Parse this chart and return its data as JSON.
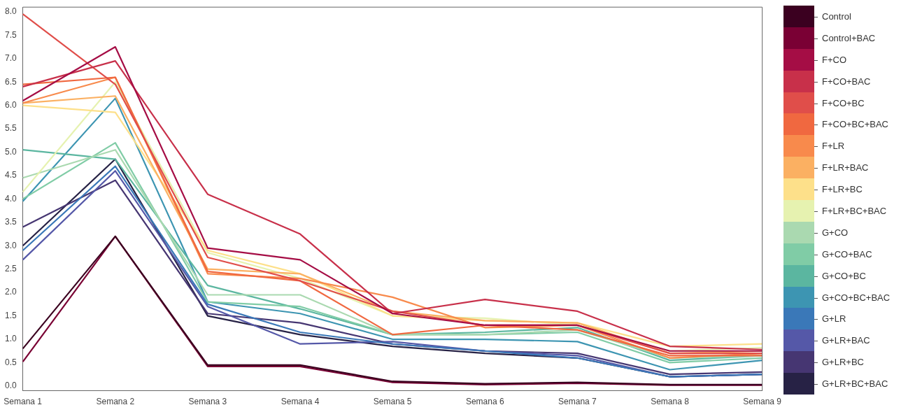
{
  "chart_data": {
    "type": "line",
    "categories": [
      "Semana 1",
      "Semana 2",
      "Semana 3",
      "Semana 4",
      "Semana 5",
      "Semana 6",
      "Semana 7",
      "Semana 8",
      "Semana 9"
    ],
    "ylim": [
      -0.1,
      8.1
    ],
    "yticks": [
      {
        "value": 0,
        "label": "0.0"
      },
      {
        "value": 0.5,
        "label": "0.5"
      },
      {
        "value": 1,
        "label": "1.0"
      },
      {
        "value": 1.5,
        "label": "1.5"
      },
      {
        "value": 2,
        "label": "2.0"
      },
      {
        "value": 2.5,
        "label": "2.5"
      },
      {
        "value": 3,
        "label": "3.0"
      },
      {
        "value": 3.5,
        "label": "3.5"
      },
      {
        "value": 4,
        "label": "4.0"
      },
      {
        "value": 4.5,
        "label": "4.5"
      },
      {
        "value": 5,
        "label": "5.0"
      },
      {
        "value": 5.5,
        "label": "5.5"
      },
      {
        "value": 6,
        "label": "6.0"
      },
      {
        "value": 6.5,
        "label": "6.5"
      },
      {
        "value": 7,
        "label": "7.0"
      },
      {
        "value": 7.5,
        "label": "7.5"
      },
      {
        "value": 8,
        "label": "8.0"
      }
    ],
    "grid": false,
    "legend": "right",
    "marker": "none",
    "line_style": "solid",
    "series": [
      {
        "name": "Control",
        "color": "#3b0020",
        "values": [
          0.8,
          3.2,
          0.45,
          0.45,
          0.1,
          0.05,
          0.08,
          0.03,
          0.03
        ]
      },
      {
        "name": "Control+BAC",
        "color": "#7a0034",
        "values": [
          0.52,
          3.2,
          0.42,
          0.42,
          0.08,
          0.03,
          0.06,
          0.02,
          0.02
        ]
      },
      {
        "name": "F+CO",
        "color": "#a50d45",
        "values": [
          6.1,
          7.25,
          2.95,
          2.7,
          1.55,
          1.3,
          1.3,
          0.75,
          0.75
        ]
      },
      {
        "name": "F+CO+BAC",
        "color": "#c8304a",
        "values": [
          6.4,
          6.95,
          4.1,
          3.25,
          1.55,
          1.85,
          1.6,
          0.85,
          0.78
        ]
      },
      {
        "name": "F+CO+BC",
        "color": "#e04e4a",
        "values": [
          7.95,
          6.45,
          2.75,
          2.25,
          1.6,
          1.3,
          1.3,
          0.7,
          0.7
        ]
      },
      {
        "name": "F+CO+BC+BAC",
        "color": "#f06840",
        "values": [
          6.45,
          6.6,
          2.45,
          2.25,
          1.1,
          1.3,
          1.2,
          0.65,
          0.65
        ]
      },
      {
        "name": "F+LR",
        "color": "#f88a4c",
        "values": [
          6.05,
          6.6,
          2.4,
          2.3,
          1.9,
          1.25,
          1.3,
          0.6,
          0.7
        ]
      },
      {
        "name": "F+LR+BAC",
        "color": "#fbb062",
        "values": [
          6.05,
          6.2,
          2.5,
          2.4,
          1.6,
          1.4,
          1.35,
          0.7,
          0.75
        ]
      },
      {
        "name": "F+LR+BC",
        "color": "#fde08a",
        "values": [
          6.0,
          5.85,
          2.9,
          2.4,
          1.5,
          1.4,
          1.35,
          0.85,
          0.9
        ]
      },
      {
        "name": "F+LR+BC+BAC",
        "color": "#e6f2b0",
        "values": [
          4.15,
          6.5,
          2.85,
          2.3,
          1.5,
          1.45,
          1.3,
          0.75,
          0.82
        ]
      },
      {
        "name": "G+CO",
        "color": "#aad9b0",
        "values": [
          4.45,
          5.05,
          1.95,
          1.95,
          1.1,
          1.1,
          1.2,
          0.6,
          0.65
        ]
      },
      {
        "name": "G+CO+BAC",
        "color": "#80cca6",
        "values": [
          4.0,
          5.2,
          1.8,
          1.7,
          1.1,
          1.1,
          1.15,
          0.5,
          0.6
        ]
      },
      {
        "name": "G+CO+BC",
        "color": "#5bb6a0",
        "values": [
          5.05,
          4.85,
          2.15,
          1.65,
          1.1,
          1.15,
          1.25,
          0.55,
          0.65
        ]
      },
      {
        "name": "G+CO+BC+BAC",
        "color": "#3d95b2",
        "values": [
          3.95,
          6.15,
          1.8,
          1.55,
          1.0,
          1.0,
          0.95,
          0.35,
          0.55
        ]
      },
      {
        "name": "G+LR",
        "color": "#3a78b8",
        "values": [
          2.9,
          4.7,
          1.75,
          1.15,
          0.9,
          0.75,
          0.6,
          0.2,
          0.25
        ]
      },
      {
        "name": "G+LR+BAC",
        "color": "#5558a8",
        "values": [
          2.7,
          4.6,
          1.7,
          0.9,
          0.95,
          0.75,
          0.65,
          0.2,
          0.25
        ]
      },
      {
        "name": "G+LR+BC",
        "color": "#463672",
        "values": [
          3.4,
          4.4,
          1.55,
          1.35,
          0.9,
          0.75,
          0.7,
          0.25,
          0.3
        ]
      },
      {
        "name": "G+LR+BC+BAC",
        "color": "#272245",
        "values": [
          3.0,
          4.85,
          1.5,
          1.1,
          0.85,
          0.7,
          0.6,
          0.2,
          0.25
        ]
      }
    ]
  }
}
